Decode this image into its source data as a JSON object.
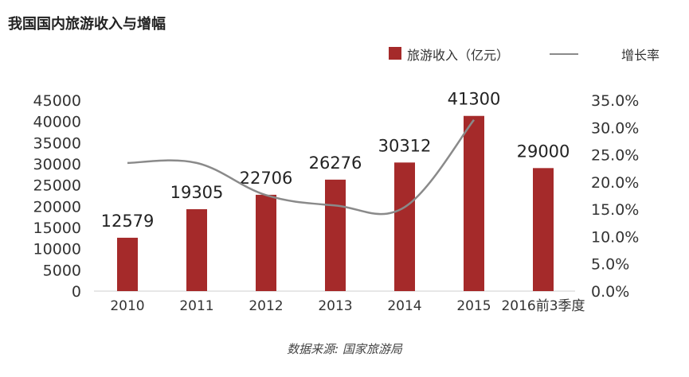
{
  "title": "我国国内旅游收入与增幅",
  "source": "数据来源: 国家旅游局",
  "chart_data": {
    "type": "bar",
    "categories": [
      "2010",
      "2011",
      "2012",
      "2013",
      "2014",
      "2015",
      "2016前3季度"
    ],
    "series": [
      {
        "name": "旅游收入（亿元）",
        "type": "bar",
        "axis": "left",
        "values": [
          12579,
          19305,
          22706,
          26276,
          30312,
          41300,
          29000
        ],
        "data_labels": [
          "12579",
          "19305",
          "22706",
          "26276",
          "30312",
          "41300",
          "29000"
        ],
        "color": "#a52a2a"
      },
      {
        "name": "增长率",
        "type": "line",
        "axis": "right",
        "values": [
          23.5,
          23.5,
          17.6,
          15.7,
          15.4,
          31.4,
          null
        ],
        "color": "#8a8a8a"
      }
    ],
    "y_left": {
      "lim": [
        0,
        45000
      ],
      "ticks": [
        "0",
        "5000",
        "10000",
        "15000",
        "20000",
        "25000",
        "30000",
        "35000",
        "40000",
        "45000"
      ]
    },
    "y_right": {
      "lim": [
        0,
        35
      ],
      "ticks": [
        "0.0%",
        "5.0%",
        "10.0%",
        "15.0%",
        "20.0%",
        "25.0%",
        "30.0%",
        "35.0%"
      ]
    },
    "grid": false,
    "legend_position": "top-right"
  }
}
